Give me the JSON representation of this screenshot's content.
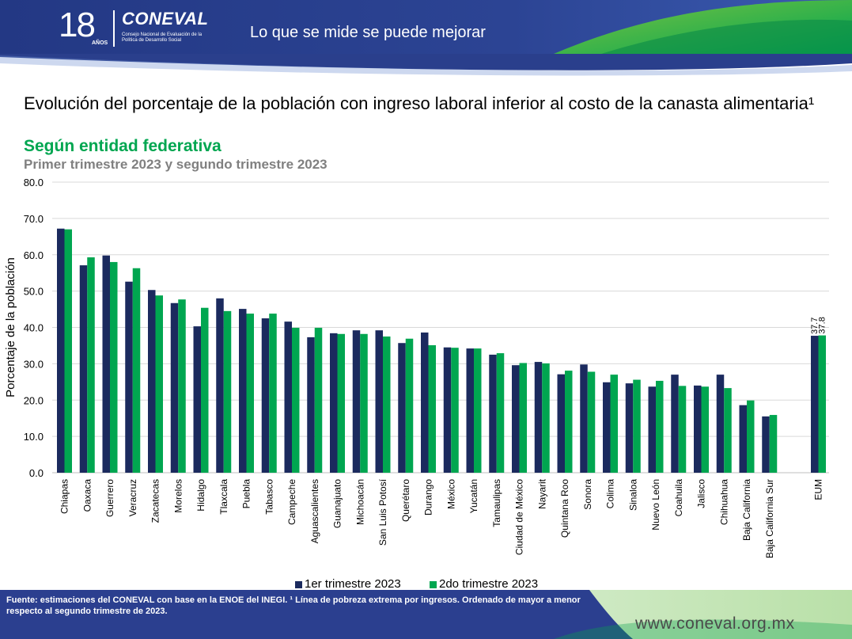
{
  "header": {
    "logo_number": "18",
    "logo_years": "AÑOS",
    "logo_name": "CONEVAL",
    "logo_subtitle": "Consejo Nacional de Evaluación de la Política de Desarrollo Social",
    "tagline": "Lo que se mide se puede mejorar"
  },
  "colors": {
    "series1": "#1b2a5e",
    "series2": "#00a650",
    "header_blue": "#2b3f8f",
    "grid": "#d9d9d9"
  },
  "chart_data": {
    "type": "bar",
    "title": "Evolución del porcentaje de la población con ingreso laboral inferior al costo de la canasta alimentaria¹",
    "subtitle": "Según entidad federativa",
    "subtitle2": "Primer trimestre 2023 y segundo trimestre 2023",
    "ylabel": "Porcentaje de la población",
    "ylim": [
      0,
      80
    ],
    "yticks": [
      "0.0",
      "10.0",
      "20.0",
      "30.0",
      "40.0",
      "50.0",
      "60.0",
      "70.0",
      "80.0"
    ],
    "grid": true,
    "legend_position": "bottom",
    "categories": [
      "Chiapas",
      "Oaxaca",
      "Guerrero",
      "Veracruz",
      "Zacatecas",
      "Morelos",
      "Hidalgo",
      "Tlaxcala",
      "Puebla",
      "Tabasco",
      "Campeche",
      "Aguascalientes",
      "Guanajuato",
      "Michoacán",
      "San Luis Potosí",
      "Querétaro",
      "Durango",
      "México",
      "Yucatán",
      "Tamaulipas",
      "Ciudad de México",
      "Nayarit",
      "Quintana Roo",
      "Sonora",
      "Colima",
      "Sinaloa",
      "Nuevo León",
      "Coahuila",
      "Jalisco",
      "Chihuahua",
      "Baja California",
      "Baja California Sur",
      "EUM"
    ],
    "series": [
      {
        "name": "1er trimestre 2023",
        "values": [
          67.2,
          57.1,
          59.8,
          52.6,
          50.3,
          46.7,
          40.3,
          48.0,
          45.1,
          42.5,
          41.6,
          37.3,
          38.4,
          39.2,
          39.2,
          35.7,
          38.6,
          34.5,
          34.2,
          32.5,
          29.6,
          30.5,
          27.1,
          29.8,
          24.9,
          24.6,
          23.7,
          27.0,
          24.0,
          27.0,
          18.6,
          15.5,
          37.7
        ]
      },
      {
        "name": "2do trimestre 2023",
        "values": [
          67.0,
          59.3,
          58.0,
          56.3,
          48.8,
          47.7,
          45.4,
          44.5,
          43.8,
          43.8,
          39.9,
          39.9,
          38.2,
          38.2,
          37.5,
          36.9,
          35.1,
          34.4,
          34.2,
          32.9,
          30.2,
          30.1,
          28.1,
          27.8,
          27.0,
          25.6,
          25.3,
          23.9,
          23.7,
          23.3,
          19.9,
          15.9,
          37.8
        ]
      }
    ],
    "value_labels": {
      "EUM": [
        "37.7",
        "37.8"
      ]
    }
  },
  "footer": {
    "source": "Fuente: estimaciones del CONEVAL con base en la ENOE del INEGI. ¹ Línea de pobreza extrema por ingresos. Ordenado de mayor a menor respecto al segundo trimestre de 2023.",
    "url": "www.coneval.org.mx"
  }
}
